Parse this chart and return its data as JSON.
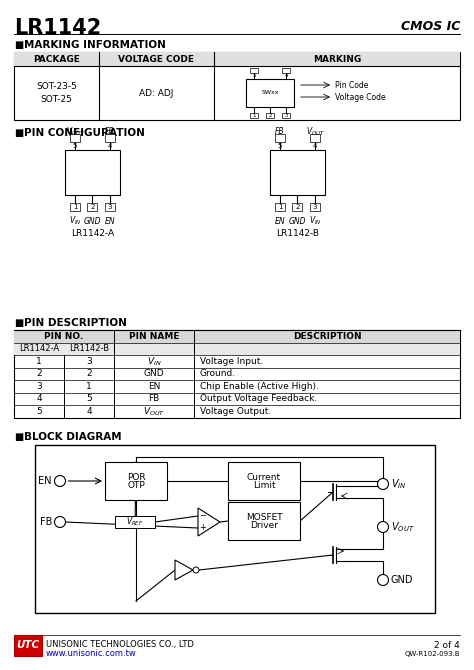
{
  "title": "LR1142",
  "cmos_ic": "CMOS IC",
  "bg_color": "#ffffff",
  "text_color": "#000000",
  "section1_title": "MARKING INFORMATION",
  "section2_title": "PIN CONFIGURATION",
  "section3_title": "PIN DESCRIPTION",
  "section4_title": "BLOCK DIAGRAM",
  "footer_company": "UNISONIC TECHNOLOGIES CO., LTD",
  "footer_url": "www.unisonic.com.tw",
  "footer_page": "2 of 4",
  "footer_doc": "QW-R102-093.B",
  "pin_rows": [
    [
      "1",
      "3",
      "VIN",
      "Voltage Input."
    ],
    [
      "2",
      "2",
      "GND",
      "Ground."
    ],
    [
      "3",
      "1",
      "EN",
      "Chip Enable (Active High)."
    ],
    [
      "4",
      "5",
      "FB",
      "Output Voltage Feedback."
    ],
    [
      "5",
      "4",
      "VOUT",
      "Voltage Output."
    ]
  ],
  "marking_package": "SOT-23-5\nSOT-25",
  "marking_voltage": "AD: ADJ"
}
